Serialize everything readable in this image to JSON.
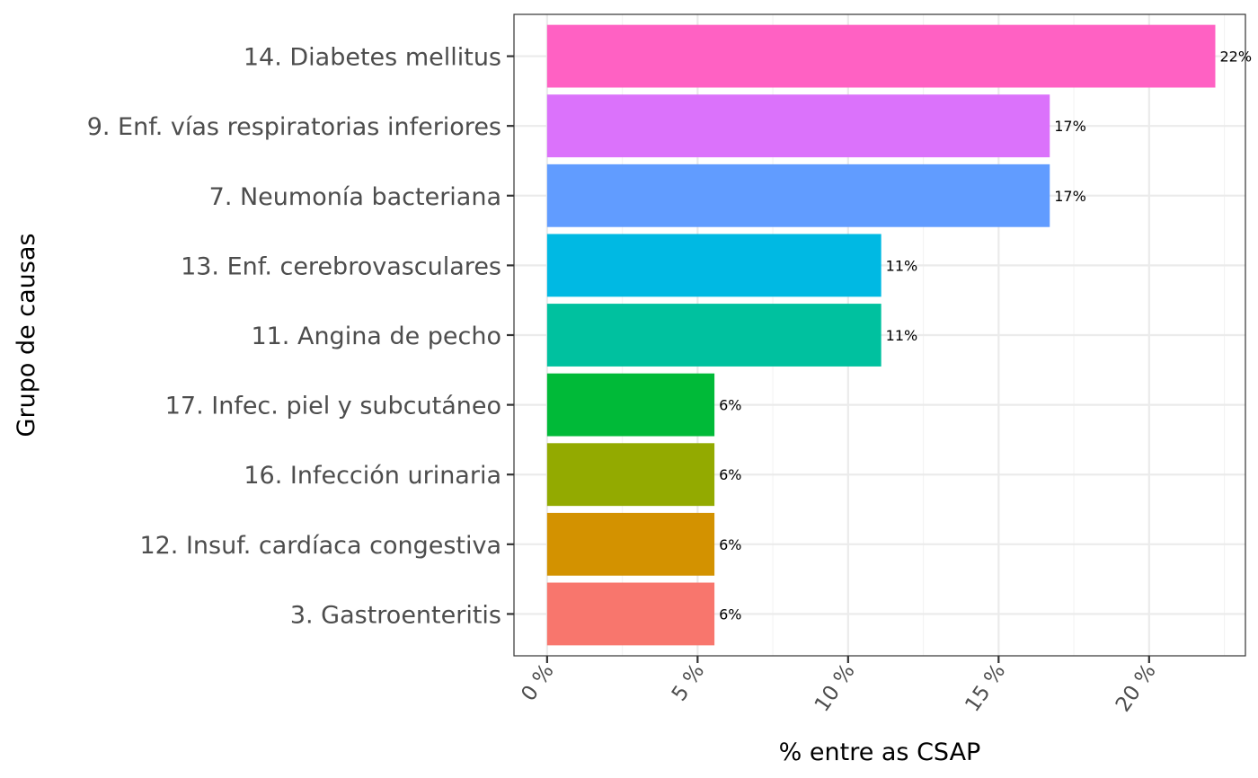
{
  "chart_data": {
    "type": "bar",
    "orientation": "horizontal",
    "xlabel": "% entre as CSAP",
    "ylabel": "Grupo de causas",
    "xlim": [
      -1.1,
      23.2
    ],
    "xticks": [
      0,
      5,
      10,
      15,
      20
    ],
    "xtick_labels": [
      "0 %",
      "5 %",
      "10 %",
      "15 %",
      "20 %"
    ],
    "grid": true,
    "legend": "none",
    "bars": [
      {
        "category": "14. Diabetes mellitus",
        "value": 22.2,
        "label": "22%",
        "color": "#FF61C3"
      },
      {
        "category": "9. Enf. vías respiratorias inferiores",
        "value": 16.7,
        "label": "17%",
        "color": "#DB72FB"
      },
      {
        "category": "7. Neumonía bacteriana",
        "value": 16.7,
        "label": "17%",
        "color": "#619CFF"
      },
      {
        "category": "13. Enf. cerebrovasculares",
        "value": 11.1,
        "label": "11%",
        "color": "#00B9E3"
      },
      {
        "category": "11. Angina de pecho",
        "value": 11.1,
        "label": "11%",
        "color": "#00C19F"
      },
      {
        "category": "17. Infec. piel y subcutáneo",
        "value": 5.56,
        "label": "6%",
        "color": "#00BA38"
      },
      {
        "category": "16. Infección urinaria",
        "value": 5.56,
        "label": "6%",
        "color": "#93AA00"
      },
      {
        "category": "12. Insuf. cardíaca congestiva",
        "value": 5.56,
        "label": "6%",
        "color": "#D39200"
      },
      {
        "category": "3. Gastroenteritis",
        "value": 5.56,
        "label": "6%",
        "color": "#F8766D"
      }
    ]
  }
}
